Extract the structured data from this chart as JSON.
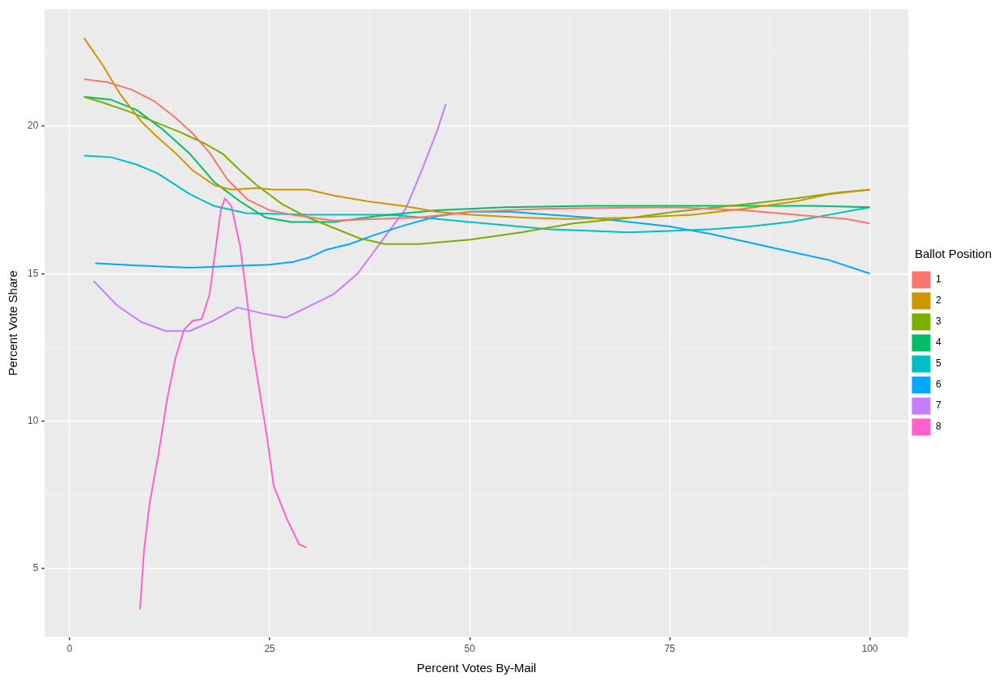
{
  "chart_data": {
    "type": "line",
    "xlabel": "Percent Votes By-Mail",
    "ylabel": "Percent Vote Share",
    "legend_title": "Ballot Position",
    "xlim": [
      -3.1,
      104.8
    ],
    "ylim": [
      2.66,
      23.98
    ],
    "xticks": [
      0,
      25,
      50,
      75,
      100
    ],
    "yticks": [
      5,
      10,
      15,
      20
    ],
    "grid": true,
    "legend": "right",
    "marker": "none",
    "line_style": "solid",
    "series": [
      {
        "name": "1",
        "color": "#F8766D",
        "x": [
          1.8,
          4.7,
          7.7,
          10.6,
          13.2,
          15.4,
          17.5,
          19.7,
          22.3,
          25,
          27.7,
          33,
          38.4,
          43.7,
          50.1,
          59.7,
          75.7,
          84.3,
          90.7,
          97.1,
          100
        ],
        "values": [
          21.6,
          21.5,
          21.25,
          20.85,
          20.3,
          19.75,
          19.1,
          18.2,
          17.5,
          17.15,
          17.0,
          16.8,
          16.85,
          16.9,
          17.1,
          17.2,
          17.25,
          17.15,
          17.0,
          16.85,
          16.7
        ]
      },
      {
        "name": "2",
        "color": "#CD9600",
        "x": [
          1.8,
          4.2,
          6.3,
          9,
          11.1,
          13.2,
          15.4,
          18.1,
          20.2,
          23.4,
          25.5,
          29.8,
          33,
          37.3,
          41.6,
          45.8,
          50.1,
          56.5,
          61.9,
          70.4,
          77.9,
          84.3,
          90.7,
          95,
          100
        ],
        "values": [
          23.0,
          22.05,
          21.1,
          20.15,
          19.6,
          19.1,
          18.5,
          18.0,
          17.85,
          17.9,
          17.85,
          17.85,
          17.65,
          17.45,
          17.3,
          17.1,
          17.0,
          16.9,
          16.85,
          16.9,
          17.0,
          17.2,
          17.45,
          17.7,
          17.85
        ]
      },
      {
        "name": "3",
        "color": "#7CAE00",
        "x": [
          1.8,
          4.2,
          7.4,
          10.6,
          13.8,
          17,
          19.2,
          21.3,
          23.4,
          26.6,
          29.8,
          33,
          36.2,
          39.4,
          43.7,
          50.1,
          56.5,
          62.9,
          70.4,
          75.7,
          84.3,
          90.7,
          96,
          100
        ],
        "values": [
          21.0,
          20.8,
          20.5,
          20.15,
          19.8,
          19.4,
          19.05,
          18.5,
          18.0,
          17.35,
          16.9,
          16.55,
          16.2,
          16.0,
          16.0,
          16.15,
          16.4,
          16.7,
          16.9,
          17.1,
          17.35,
          17.55,
          17.75,
          17.85
        ]
      },
      {
        "name": "4",
        "color": "#00BE67",
        "x": [
          1.8,
          5.2,
          8.4,
          11.6,
          14.9,
          18.1,
          21.3,
          24.5,
          27.7,
          33,
          38.4,
          45.8,
          54.4,
          65.1,
          75.7,
          86.4,
          92.8,
          100
        ],
        "values": [
          21.0,
          20.9,
          20.55,
          19.9,
          19.1,
          18.1,
          17.45,
          16.9,
          16.75,
          16.75,
          16.95,
          17.15,
          17.25,
          17.3,
          17.3,
          17.3,
          17.3,
          17.25
        ]
      },
      {
        "name": "5",
        "color": "#00BFC4",
        "x": [
          1.8,
          5.2,
          8.4,
          11,
          15,
          18,
          22,
          30,
          40,
          50,
          60,
          70,
          75,
          80,
          85,
          90,
          95,
          100
        ],
        "values": [
          19.0,
          18.95,
          18.7,
          18.4,
          17.7,
          17.3,
          17.05,
          17.0,
          17.0,
          16.75,
          16.5,
          16.4,
          16.45,
          16.5,
          16.6,
          16.75,
          17.0,
          17.25
        ]
      },
      {
        "name": "6",
        "color": "#00A9FF",
        "x": [
          3.2,
          8,
          15,
          20,
          25,
          28,
          30,
          32,
          35,
          38,
          42,
          46,
          50,
          55,
          60,
          65,
          70,
          75,
          80,
          85,
          90,
          95,
          100
        ],
        "values": [
          15.35,
          15.28,
          15.2,
          15.25,
          15.3,
          15.4,
          15.55,
          15.8,
          16.0,
          16.3,
          16.65,
          16.95,
          17.1,
          17.1,
          17.0,
          16.9,
          16.75,
          16.6,
          16.35,
          16.05,
          15.75,
          15.45,
          15.0
        ]
      },
      {
        "name": "7",
        "color": "#C77CFF",
        "x": [
          3,
          6,
          9,
          12,
          15,
          18,
          21,
          24,
          27,
          30,
          33,
          36,
          39,
          42,
          44,
          46,
          47
        ],
        "values": [
          14.75,
          13.9,
          13.35,
          13.05,
          13.05,
          13.4,
          13.85,
          13.65,
          13.5,
          13.9,
          14.3,
          15.0,
          16.1,
          17.2,
          18.5,
          19.9,
          20.75
        ]
      },
      {
        "name": "8",
        "color": "#FF61CC",
        "x": [
          8.8,
          9.3,
          10,
          11.1,
          12.2,
          13.2,
          14.3,
          15.4,
          16.5,
          17.5,
          18.3,
          18.9,
          19.4,
          20.2,
          21.3,
          22.1,
          22.9,
          23.9,
          24.7,
          25.5,
          27.1,
          28.7,
          29.6
        ],
        "values": [
          3.6,
          5.6,
          7.2,
          8.85,
          10.75,
          12.1,
          13.1,
          13.4,
          13.45,
          14.3,
          15.95,
          17.15,
          17.55,
          17.3,
          15.95,
          14.3,
          12.4,
          10.75,
          9.4,
          7.8,
          6.7,
          5.8,
          5.7
        ]
      }
    ]
  }
}
